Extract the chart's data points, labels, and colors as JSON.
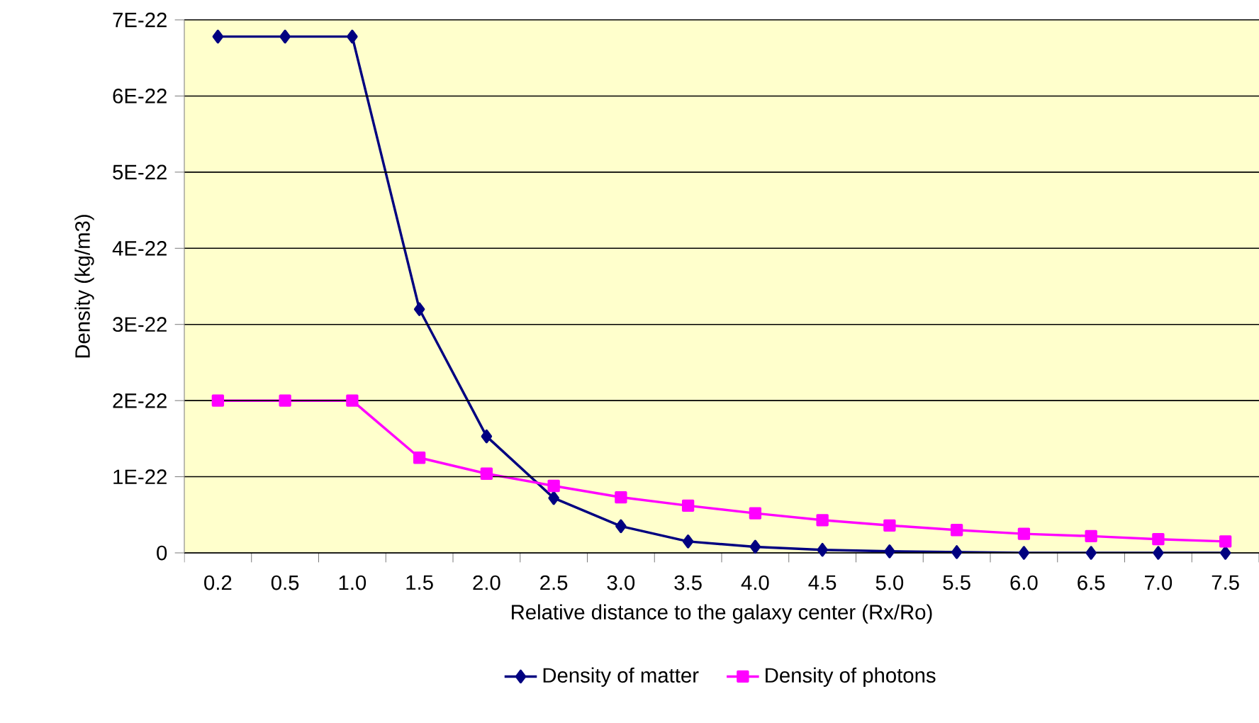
{
  "chart_data": {
    "type": "line",
    "xlabel": "Relative distance to the galaxy center (Rx/Ro)",
    "ylabel": "Density (kg/m3)",
    "categories": [
      "0.2",
      "0.5",
      "1.0",
      "1.5",
      "2.0",
      "2.5",
      "3.0",
      "3.5",
      "4.0",
      "4.5",
      "5.0",
      "5.5",
      "6.0",
      "6.5",
      "7.0",
      "7.5"
    ],
    "series": [
      {
        "name": "Density of matter",
        "color": "#000080",
        "marker": "diamond",
        "values": [
          6.78e-22,
          6.78e-22,
          6.78e-22,
          3.2e-22,
          1.53e-22,
          7.2e-23,
          3.5e-23,
          1.5e-23,
          8e-24,
          4e-24,
          2e-24,
          1e-24,
          0,
          0,
          0,
          0
        ]
      },
      {
        "name": "Density of photons",
        "color": "#ff00ff",
        "marker": "square",
        "values": [
          2e-22,
          2e-22,
          2e-22,
          1.25e-22,
          1.04e-22,
          8.8e-23,
          7.3e-23,
          6.2e-23,
          5.2e-23,
          4.3e-23,
          3.6e-23,
          3e-23,
          2.5e-23,
          2.2e-23,
          1.8e-23,
          1.5e-23
        ]
      }
    ],
    "ylim": [
      0,
      7e-22
    ],
    "yticks": [
      0,
      {
        "value": 1e-22,
        "label": "1E-22"
      },
      {
        "value": 2e-22,
        "label": "2E-22"
      },
      {
        "value": 3e-22,
        "label": "3E-22"
      },
      {
        "value": 4e-22,
        "label": "4E-22"
      },
      {
        "value": 5e-22,
        "label": "5E-22"
      },
      {
        "value": 6e-22,
        "label": "6E-22"
      },
      {
        "value": 7e-22,
        "label": "7E-22"
      }
    ],
    "grid": "y",
    "legend": "bottom",
    "line_style": "solid"
  }
}
